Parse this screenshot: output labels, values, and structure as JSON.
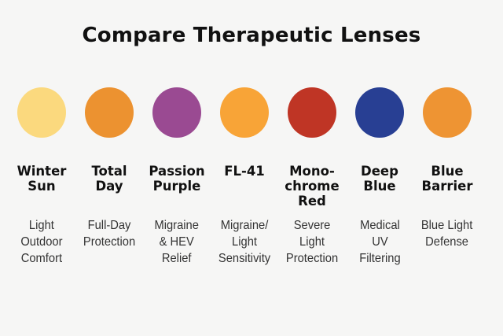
{
  "title": "Compare Therapeutic Lenses",
  "lenses": [
    {
      "name": "Winter\nSun",
      "description": "Light\nOutdoor\nComfort",
      "color": "#fbd97e"
    },
    {
      "name": "Total\nDay",
      "description": "Full-Day\nProtection",
      "color": "#ec9230"
    },
    {
      "name": "Passion\nPurple",
      "description": "Migraine\n& HEV\nRelief",
      "color": "#9a4a92"
    },
    {
      "name": "FL-41",
      "description": "Migraine/\nLight\nSensitivity",
      "color": "#f8a437"
    },
    {
      "name": "Mono-\nchrome\nRed",
      "description": "Severe\nLight\nProtection",
      "color": "#bf3525"
    },
    {
      "name": "Deep\nBlue",
      "description": "Medical\nUV\nFiltering",
      "color": "#283f93"
    },
    {
      "name": "Blue\nBarrier",
      "description": "Blue Light\nDefense",
      "color": "#ee9433"
    }
  ]
}
